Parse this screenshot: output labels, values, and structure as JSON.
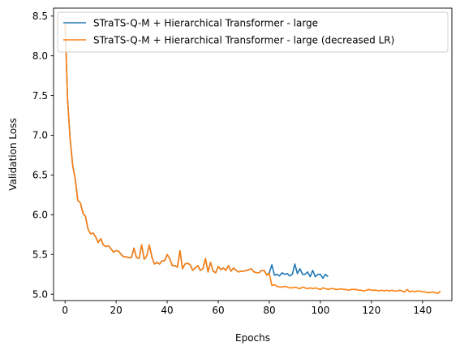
{
  "chart_data": {
    "type": "line",
    "title": "",
    "xlabel": "Epochs",
    "ylabel": "Validation Loss",
    "xlim": [
      -4.5,
      151.5
    ],
    "ylim": [
      4.92,
      8.6
    ],
    "xticks": [
      0,
      20,
      40,
      60,
      80,
      100,
      120,
      140
    ],
    "yticks": [
      5.0,
      5.5,
      6.0,
      6.5,
      7.0,
      7.5,
      8.0,
      8.5
    ],
    "grid": false,
    "legend_position": "top-right",
    "series": [
      {
        "name": "STraTS-Q-M + Hierarchical Transformer - large",
        "color": "#1f77b4",
        "x": [
          0,
          1,
          2,
          3,
          4,
          5,
          6,
          7,
          8,
          9,
          10,
          11,
          12,
          13,
          14,
          15,
          16,
          17,
          18,
          19,
          20,
          21,
          22,
          23,
          24,
          25,
          26,
          27,
          28,
          29,
          30,
          31,
          32,
          33,
          34,
          35,
          36,
          37,
          38,
          39,
          40,
          41,
          42,
          43,
          44,
          45,
          46,
          47,
          48,
          49,
          50,
          51,
          52,
          53,
          54,
          55,
          56,
          57,
          58,
          59,
          60,
          61,
          62,
          63,
          64,
          65,
          66,
          67,
          68,
          69,
          70,
          71,
          72,
          73,
          74,
          75,
          76,
          77,
          78,
          79,
          80,
          81,
          82,
          83,
          84,
          85,
          86,
          87,
          88,
          89,
          90,
          91,
          92,
          93,
          94,
          95,
          96,
          97,
          98,
          99,
          100,
          101,
          102,
          103
        ],
        "y": [
          8.42,
          7.45,
          6.95,
          6.62,
          6.45,
          6.18,
          6.15,
          6.02,
          5.98,
          5.82,
          5.76,
          5.77,
          5.72,
          5.65,
          5.7,
          5.62,
          5.6,
          5.61,
          5.57,
          5.53,
          5.55,
          5.54,
          5.5,
          5.47,
          5.47,
          5.46,
          5.46,
          5.58,
          5.46,
          5.45,
          5.62,
          5.44,
          5.48,
          5.62,
          5.47,
          5.38,
          5.4,
          5.38,
          5.42,
          5.42,
          5.5,
          5.45,
          5.36,
          5.36,
          5.34,
          5.55,
          5.32,
          5.38,
          5.39,
          5.37,
          5.3,
          5.33,
          5.36,
          5.3,
          5.32,
          5.45,
          5.28,
          5.4,
          5.29,
          5.27,
          5.35,
          5.31,
          5.33,
          5.3,
          5.36,
          5.29,
          5.33,
          5.3,
          5.28,
          5.29,
          5.29,
          5.3,
          5.31,
          5.32,
          5.28,
          5.27,
          5.27,
          5.3,
          5.3,
          5.24,
          5.27,
          5.37,
          5.24,
          5.25,
          5.23,
          5.27,
          5.25,
          5.26,
          5.23,
          5.25,
          5.38,
          5.26,
          5.32,
          5.25,
          5.25,
          5.28,
          5.22,
          5.3,
          5.22,
          5.25,
          5.25,
          5.2,
          5.25,
          5.22
        ]
      },
      {
        "name": "STraTS-Q-M + Hierarchical Transformer - large (decreased LR)",
        "color": "#ff7f0e",
        "x": [
          0,
          1,
          2,
          3,
          4,
          5,
          6,
          7,
          8,
          9,
          10,
          11,
          12,
          13,
          14,
          15,
          16,
          17,
          18,
          19,
          20,
          21,
          22,
          23,
          24,
          25,
          26,
          27,
          28,
          29,
          30,
          31,
          32,
          33,
          34,
          35,
          36,
          37,
          38,
          39,
          40,
          41,
          42,
          43,
          44,
          45,
          46,
          47,
          48,
          49,
          50,
          51,
          52,
          53,
          54,
          55,
          56,
          57,
          58,
          59,
          60,
          61,
          62,
          63,
          64,
          65,
          66,
          67,
          68,
          69,
          70,
          71,
          72,
          73,
          74,
          75,
          76,
          77,
          78,
          79,
          80,
          81,
          82,
          83,
          84,
          85,
          86,
          87,
          88,
          89,
          90,
          91,
          92,
          93,
          94,
          95,
          96,
          97,
          98,
          99,
          100,
          101,
          102,
          103,
          104,
          105,
          106,
          107,
          108,
          109,
          110,
          111,
          112,
          113,
          114,
          115,
          116,
          117,
          118,
          119,
          120,
          121,
          122,
          123,
          124,
          125,
          126,
          127,
          128,
          129,
          130,
          131,
          132,
          133,
          134,
          135,
          136,
          137,
          138,
          139,
          140,
          141,
          142,
          143,
          144,
          145,
          146,
          147
        ],
        "y": [
          8.42,
          7.45,
          6.95,
          6.62,
          6.45,
          6.18,
          6.15,
          6.02,
          5.98,
          5.82,
          5.76,
          5.77,
          5.72,
          5.65,
          5.7,
          5.62,
          5.6,
          5.61,
          5.57,
          5.53,
          5.55,
          5.54,
          5.5,
          5.47,
          5.47,
          5.46,
          5.46,
          5.58,
          5.46,
          5.45,
          5.62,
          5.44,
          5.48,
          5.62,
          5.47,
          5.38,
          5.4,
          5.38,
          5.42,
          5.42,
          5.5,
          5.45,
          5.36,
          5.36,
          5.34,
          5.55,
          5.32,
          5.38,
          5.39,
          5.37,
          5.3,
          5.33,
          5.36,
          5.3,
          5.32,
          5.45,
          5.28,
          5.4,
          5.29,
          5.27,
          5.35,
          5.31,
          5.33,
          5.3,
          5.36,
          5.29,
          5.33,
          5.3,
          5.28,
          5.29,
          5.29,
          5.3,
          5.31,
          5.32,
          5.28,
          5.27,
          5.27,
          5.3,
          5.3,
          5.24,
          5.26,
          5.11,
          5.12,
          5.1,
          5.09,
          5.09,
          5.1,
          5.09,
          5.08,
          5.08,
          5.09,
          5.08,
          5.07,
          5.09,
          5.08,
          5.07,
          5.08,
          5.07,
          5.08,
          5.07,
          5.06,
          5.08,
          5.07,
          5.06,
          5.07,
          5.07,
          5.06,
          5.06,
          5.07,
          5.06,
          5.06,
          5.05,
          5.06,
          5.06,
          5.06,
          5.05,
          5.05,
          5.04,
          5.05,
          5.06,
          5.05,
          5.05,
          5.05,
          5.04,
          5.05,
          5.04,
          5.05,
          5.04,
          5.05,
          5.04,
          5.04,
          5.05,
          5.04,
          5.03,
          5.06,
          5.03,
          5.04,
          5.03,
          5.04,
          5.04,
          5.03,
          5.03,
          5.02,
          5.02,
          5.03,
          5.02,
          5.01,
          5.04
        ]
      }
    ]
  }
}
